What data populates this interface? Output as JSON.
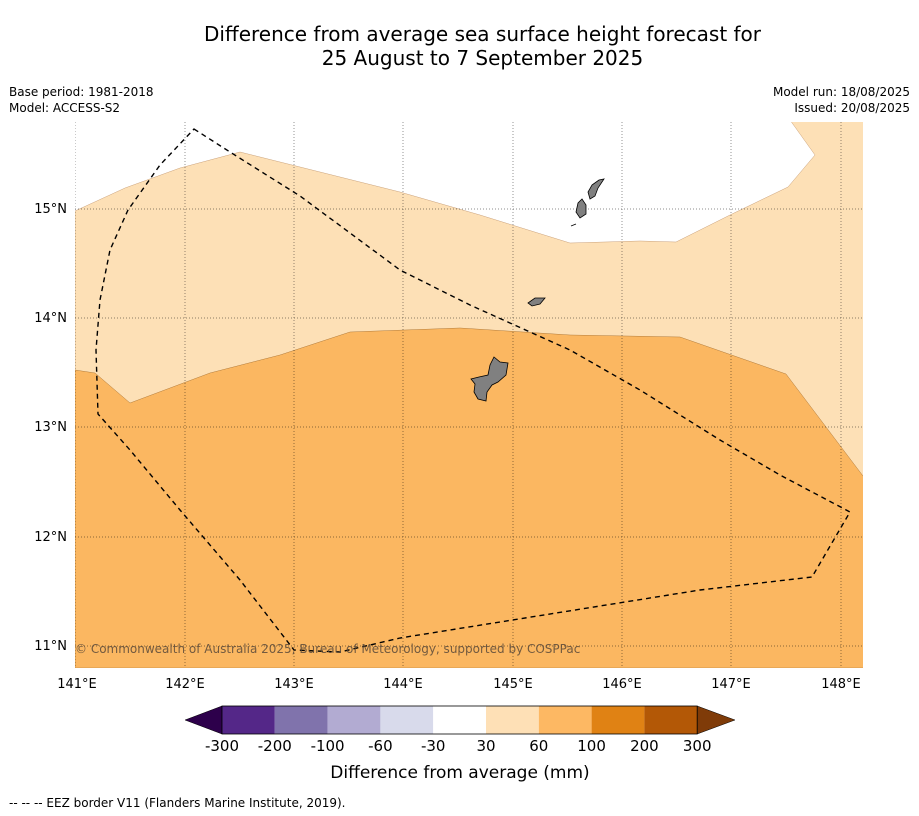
{
  "title_line1": "Difference from average sea surface height forecast for",
  "title_line2": "25 August to 7 September 2025",
  "base_period": "Base period: 1981-2018",
  "model": "Model: ACCESS-S2",
  "model_run": "Model run: 18/08/2025",
  "issued": "Issued: 20/08/2025",
  "copyright": "© Commonwealth of Australia 2025, Bureau of Meteorology, supported by COSPPac",
  "lon_labels": [
    "141°E",
    "142°E",
    "143°E",
    "144°E",
    "145°E",
    "146°E",
    "147°E",
    "148°E"
  ],
  "lat_labels": [
    "15°N",
    "14°N",
    "13°N",
    "12°N",
    "11°N"
  ],
  "colorbar": {
    "label": "Difference from average (mm)",
    "ticks": [
      "-300",
      "-200",
      "-100",
      "-60",
      "-30",
      "30",
      "60",
      "100",
      "200",
      "300"
    ],
    "colors": [
      "#542788",
      "#8073ac",
      "#b2abd2",
      "#d8daeb",
      "#ffffff",
      "#fee0b6",
      "#fdb863",
      "#e08214",
      "#b35806"
    ],
    "under_color": "#2d004b",
    "over_color": "#7f3b08"
  },
  "map_colors": {
    "band_30_60": "#fde0b6",
    "band_60_100": "#fbb761",
    "land": "#808080"
  },
  "footnote": "--  --  -- EEZ border V11 (Flanders Marine Institute, 2019)."
}
